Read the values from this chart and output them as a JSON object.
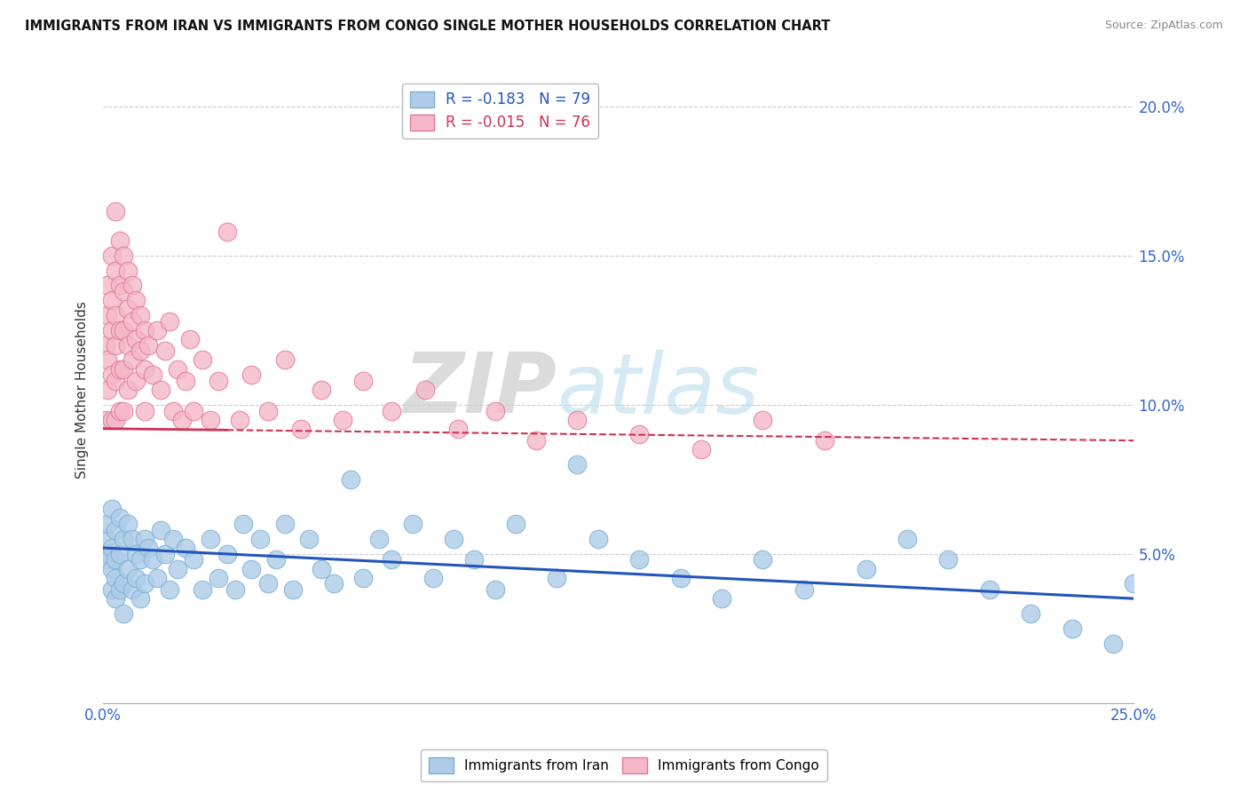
{
  "title": "IMMIGRANTS FROM IRAN VS IMMIGRANTS FROM CONGO SINGLE MOTHER HOUSEHOLDS CORRELATION CHART",
  "source": "Source: ZipAtlas.com",
  "ylabel": "Single Mother Households",
  "xlim": [
    0.0,
    0.25
  ],
  "ylim": [
    0.0,
    0.21
  ],
  "yticks": [
    0.0,
    0.05,
    0.1,
    0.15,
    0.2
  ],
  "ytick_labels": [
    "",
    "5.0%",
    "10.0%",
    "15.0%",
    "20.0%"
  ],
  "xtick_left": "0.0%",
  "xtick_right": "25.0%",
  "iran_color": "#aecce8",
  "iran_edge_color": "#7aafd4",
  "congo_color": "#f5b8c8",
  "congo_edge_color": "#e07898",
  "trend_iran_color": "#2255bb",
  "trend_congo_color": "#cc3355",
  "legend_iran_label": "Immigrants from Iran",
  "legend_congo_label": "Immigrants from Congo",
  "iran_R": -0.183,
  "iran_N": 79,
  "congo_R": -0.015,
  "congo_N": 76,
  "watermark_zip": "ZIP",
  "watermark_atlas": "atlas",
  "background_color": "#ffffff",
  "iran_scatter_x": [
    0.0005,
    0.001,
    0.001,
    0.001,
    0.002,
    0.002,
    0.002,
    0.002,
    0.003,
    0.003,
    0.003,
    0.003,
    0.004,
    0.004,
    0.004,
    0.005,
    0.005,
    0.005,
    0.006,
    0.006,
    0.007,
    0.007,
    0.008,
    0.008,
    0.009,
    0.009,
    0.01,
    0.01,
    0.011,
    0.012,
    0.013,
    0.014,
    0.015,
    0.016,
    0.017,
    0.018,
    0.02,
    0.022,
    0.024,
    0.026,
    0.028,
    0.03,
    0.032,
    0.034,
    0.036,
    0.038,
    0.04,
    0.042,
    0.044,
    0.046,
    0.05,
    0.053,
    0.056,
    0.06,
    0.063,
    0.067,
    0.07,
    0.075,
    0.08,
    0.085,
    0.09,
    0.095,
    0.1,
    0.11,
    0.115,
    0.12,
    0.13,
    0.14,
    0.15,
    0.16,
    0.17,
    0.185,
    0.195,
    0.205,
    0.215,
    0.225,
    0.235,
    0.245,
    0.25
  ],
  "iran_scatter_y": [
    0.055,
    0.05,
    0.06,
    0.048,
    0.065,
    0.052,
    0.045,
    0.038,
    0.058,
    0.042,
    0.048,
    0.035,
    0.062,
    0.05,
    0.038,
    0.055,
    0.04,
    0.03,
    0.06,
    0.045,
    0.055,
    0.038,
    0.05,
    0.042,
    0.048,
    0.035,
    0.055,
    0.04,
    0.052,
    0.048,
    0.042,
    0.058,
    0.05,
    0.038,
    0.055,
    0.045,
    0.052,
    0.048,
    0.038,
    0.055,
    0.042,
    0.05,
    0.038,
    0.06,
    0.045,
    0.055,
    0.04,
    0.048,
    0.06,
    0.038,
    0.055,
    0.045,
    0.04,
    0.075,
    0.042,
    0.055,
    0.048,
    0.06,
    0.042,
    0.055,
    0.048,
    0.038,
    0.06,
    0.042,
    0.08,
    0.055,
    0.048,
    0.042,
    0.035,
    0.048,
    0.038,
    0.045,
    0.055,
    0.048,
    0.038,
    0.03,
    0.025,
    0.02,
    0.04
  ],
  "congo_scatter_x": [
    0.0003,
    0.0005,
    0.001,
    0.001,
    0.001,
    0.001,
    0.002,
    0.002,
    0.002,
    0.002,
    0.002,
    0.003,
    0.003,
    0.003,
    0.003,
    0.003,
    0.003,
    0.004,
    0.004,
    0.004,
    0.004,
    0.004,
    0.005,
    0.005,
    0.005,
    0.005,
    0.005,
    0.006,
    0.006,
    0.006,
    0.006,
    0.007,
    0.007,
    0.007,
    0.008,
    0.008,
    0.008,
    0.009,
    0.009,
    0.01,
    0.01,
    0.01,
    0.011,
    0.012,
    0.013,
    0.014,
    0.015,
    0.016,
    0.017,
    0.018,
    0.019,
    0.02,
    0.021,
    0.022,
    0.024,
    0.026,
    0.028,
    0.03,
    0.033,
    0.036,
    0.04,
    0.044,
    0.048,
    0.053,
    0.058,
    0.063,
    0.07,
    0.078,
    0.086,
    0.095,
    0.105,
    0.115,
    0.13,
    0.145,
    0.16,
    0.175
  ],
  "congo_scatter_y": [
    0.095,
    0.12,
    0.14,
    0.13,
    0.115,
    0.105,
    0.15,
    0.135,
    0.125,
    0.11,
    0.095,
    0.165,
    0.145,
    0.13,
    0.12,
    0.108,
    0.095,
    0.155,
    0.14,
    0.125,
    0.112,
    0.098,
    0.15,
    0.138,
    0.125,
    0.112,
    0.098,
    0.145,
    0.132,
    0.12,
    0.105,
    0.14,
    0.128,
    0.115,
    0.135,
    0.122,
    0.108,
    0.13,
    0.118,
    0.125,
    0.112,
    0.098,
    0.12,
    0.11,
    0.125,
    0.105,
    0.118,
    0.128,
    0.098,
    0.112,
    0.095,
    0.108,
    0.122,
    0.098,
    0.115,
    0.095,
    0.108,
    0.158,
    0.095,
    0.11,
    0.098,
    0.115,
    0.092,
    0.105,
    0.095,
    0.108,
    0.098,
    0.105,
    0.092,
    0.098,
    0.088,
    0.095,
    0.09,
    0.085,
    0.095,
    0.088
  ],
  "congo_trend_y_start": 0.092,
  "congo_trend_y_end": 0.088,
  "iran_trend_y_start": 0.052,
  "iran_trend_y_end": 0.035
}
